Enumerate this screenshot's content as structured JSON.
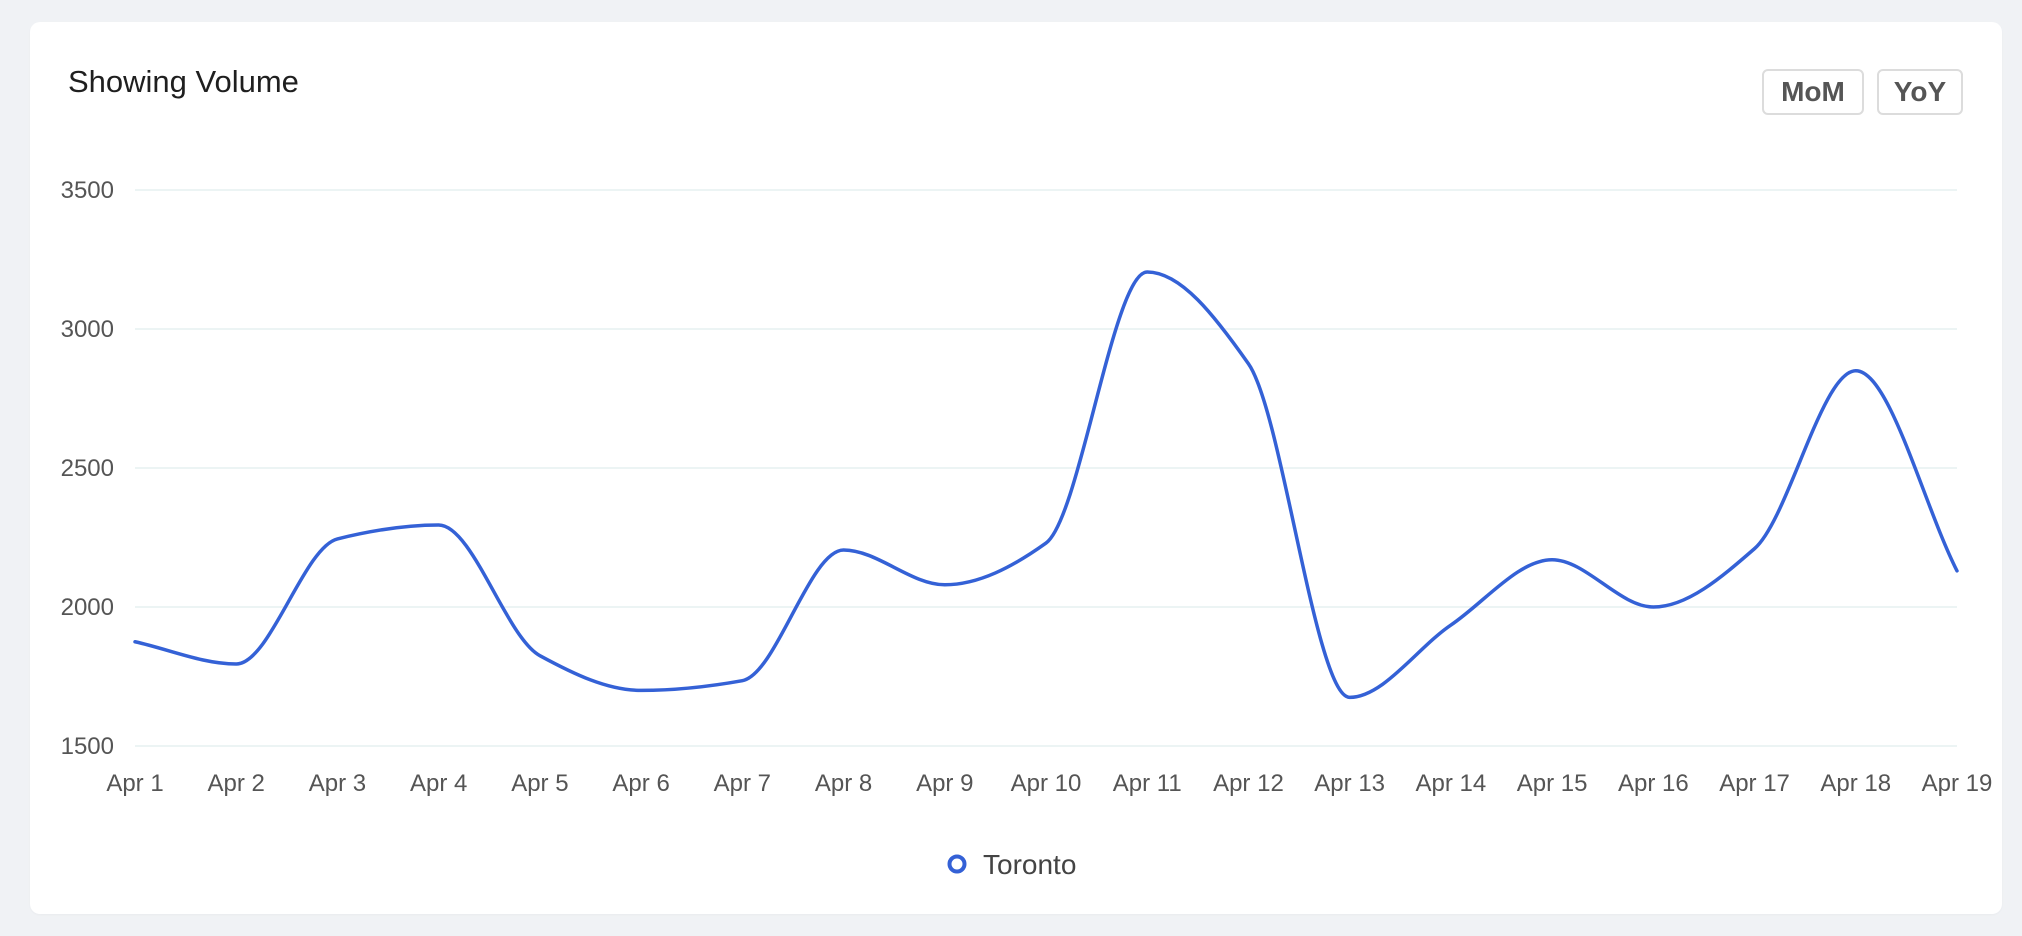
{
  "card": {
    "title": "Showing Volume",
    "buttons": {
      "mom_label": "MoM",
      "yoy_label": "YoY"
    }
  },
  "colors": {
    "series": "#3461d6",
    "grid": "#e6f0f0",
    "background": "#f0f2f5"
  },
  "chart_data": {
    "type": "line",
    "title": "Showing Volume",
    "xlabel": "",
    "ylabel": "",
    "categories": [
      "Apr 1",
      "Apr 2",
      "Apr 3",
      "Apr 4",
      "Apr 5",
      "Apr 6",
      "Apr 7",
      "Apr 8",
      "Apr 9",
      "Apr 10",
      "Apr 11",
      "Apr 12",
      "Apr 13",
      "Apr 14",
      "Apr 15",
      "Apr 16",
      "Apr 17",
      "Apr 18",
      "Apr 19"
    ],
    "series": [
      {
        "name": "Toronto",
        "values": [
          1875,
          1795,
          2245,
          2295,
          1825,
          1700,
          1735,
          2205,
          2080,
          2230,
          3205,
          2875,
          1675,
          1935,
          2170,
          2000,
          2210,
          2850,
          2130
        ]
      }
    ],
    "y_ticks": [
      1500,
      2000,
      2500,
      3000,
      3500
    ],
    "ylim": [
      1500,
      3500
    ],
    "grid": true,
    "legend": "bottom-center",
    "smooth": true
  }
}
